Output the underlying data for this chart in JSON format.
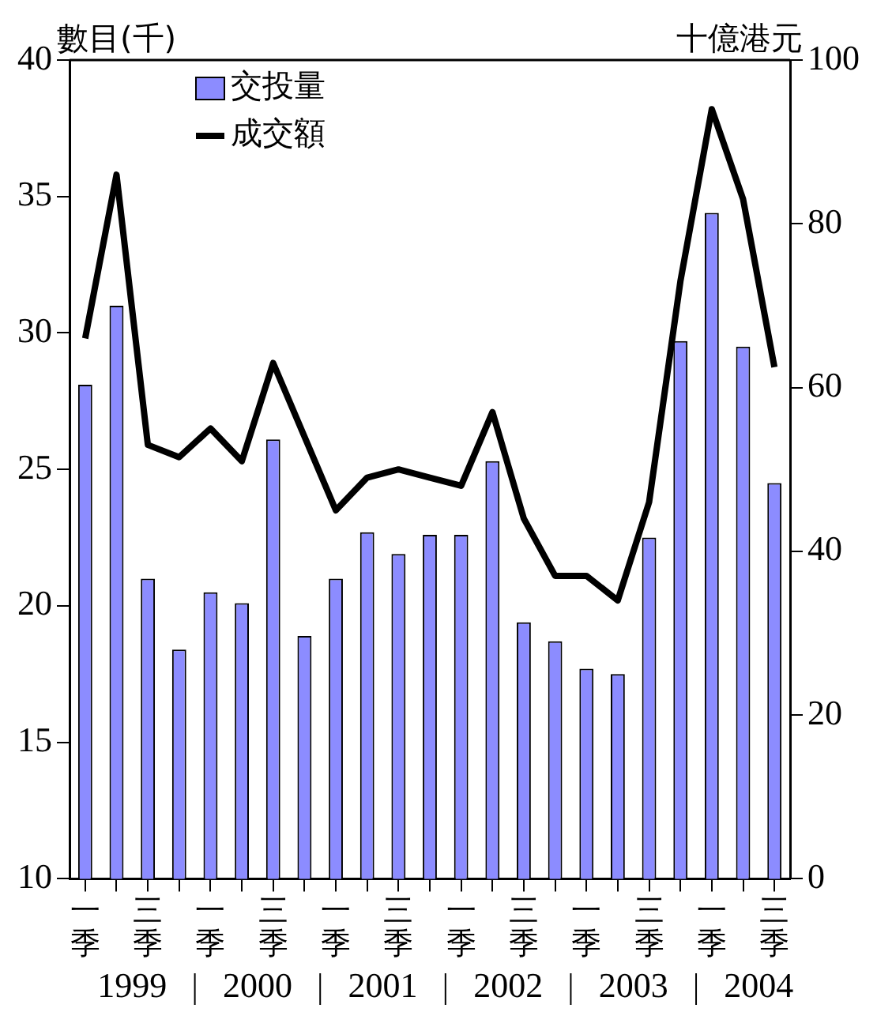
{
  "chart_data": {
    "type": "bar",
    "ylabel": "數目(千)",
    "y2label": "十億港元",
    "categories": [
      "一季",
      null,
      "三季",
      null,
      "一季",
      null,
      "三季",
      null,
      "一季",
      null,
      "三季",
      null,
      "一季",
      null,
      "三季",
      null,
      "一季",
      null,
      "三季",
      null,
      "一季",
      null,
      "三季"
    ],
    "series": [
      {
        "name": "交投量",
        "color": "#8c8cff",
        "values": [
          28.1,
          31.0,
          21.0,
          18.4,
          20.5,
          20.1,
          26.1,
          18.9,
          21.0,
          22.7,
          21.9,
          22.6,
          22.6,
          25.3,
          19.4,
          18.7,
          17.7,
          17.5,
          22.5,
          29.7,
          34.4,
          29.5,
          24.5
        ]
      },
      {
        "name": "成交額",
        "type": "line",
        "axis": "y2",
        "color": "#000000",
        "values": [
          66,
          86,
          53,
          51.5,
          55,
          51,
          63,
          54,
          45,
          49,
          50,
          49,
          48,
          57,
          44,
          37,
          37,
          34,
          46,
          73,
          94,
          83,
          62.5
        ]
      }
    ],
    "ylim": [
      10,
      40
    ],
    "yticks": [
      10,
      15,
      20,
      25,
      30,
      35,
      40
    ],
    "y2lim": [
      0,
      100
    ],
    "y2ticks": [
      0,
      20,
      40,
      60,
      80,
      100
    ],
    "annotations": [
      "1999",
      "2000",
      "2001",
      "2002",
      "2003",
      "2004"
    ],
    "grid": false,
    "legend": "top left",
    "marker": "none",
    "line_style": "solid"
  }
}
